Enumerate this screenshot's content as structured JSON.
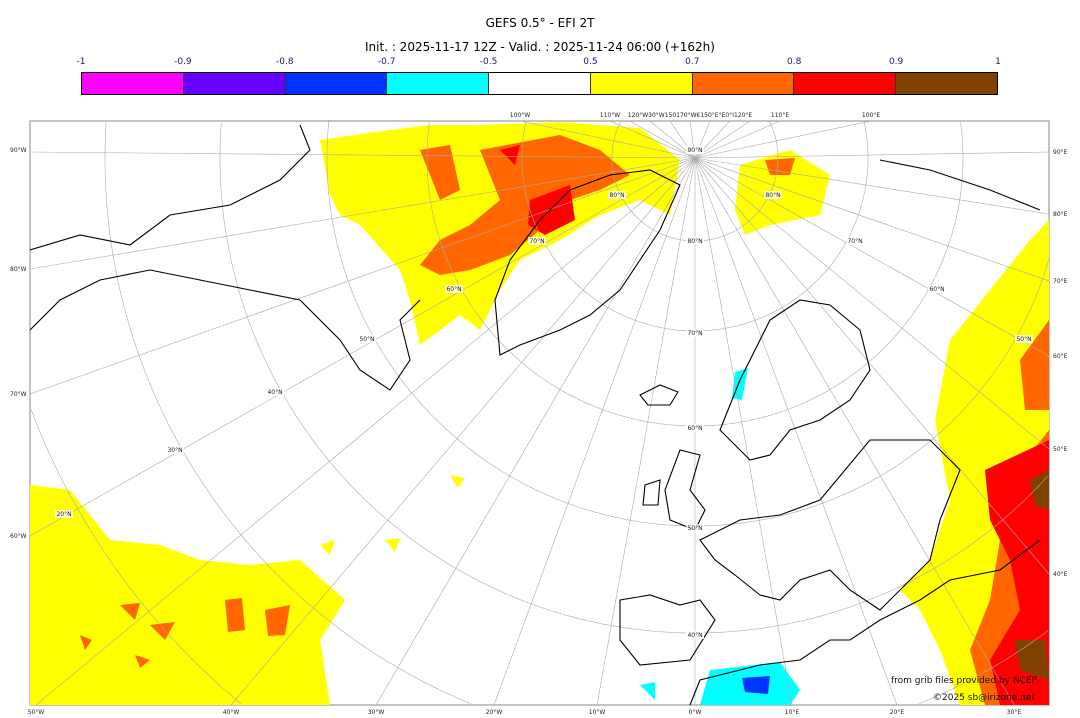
{
  "header": {
    "title": "GEFS 0.5° - EFI 2T",
    "subtitle": "Init. : 2025-11-17 12Z - Valid. : 2025-11-24 06:00 (+162h)"
  },
  "colorbar": {
    "ticks": [
      "-1",
      "-0.9",
      "-0.8",
      "-0.7",
      "-0.5",
      "0.5",
      "0.7",
      "0.8",
      "0.9",
      "1"
    ],
    "colors": [
      "#ff00ff",
      "#6600ff",
      "#0033ff",
      "#00ffff",
      "#ffffff",
      "#ffff00",
      "#ff6600",
      "#ff0000",
      "#804000"
    ]
  },
  "map": {
    "left_labels": [
      "90°W",
      "80°W",
      "70°W",
      "60°W"
    ],
    "right_labels": [
      "90°E",
      "80°E",
      "70°E",
      "60°E",
      "50°E",
      "40°E"
    ],
    "bottom_labels": [
      "50°W",
      "40°W",
      "30°W",
      "20°W",
      "10°W",
      "0°W",
      "10°E",
      "20°E",
      "30°E"
    ],
    "top_labels": [
      "100°W",
      "110°W",
      "120°W30°W150170°W€150°E°E0°I120°E",
      "110°E",
      "100°E"
    ],
    "lat_labels": [
      "90°N",
      "80°N",
      "70°N",
      "60°N",
      "50°N",
      "40°N",
      "30°N",
      "20°N",
      "80°N",
      "70°N",
      "60°N",
      "50°N",
      "40°N",
      "80°N",
      "70°N",
      "60°N",
      "50°N"
    ]
  },
  "credits": {
    "source": "from grib files provided by NCEP",
    "copyright": "©2025 sb@irizone.net"
  }
}
